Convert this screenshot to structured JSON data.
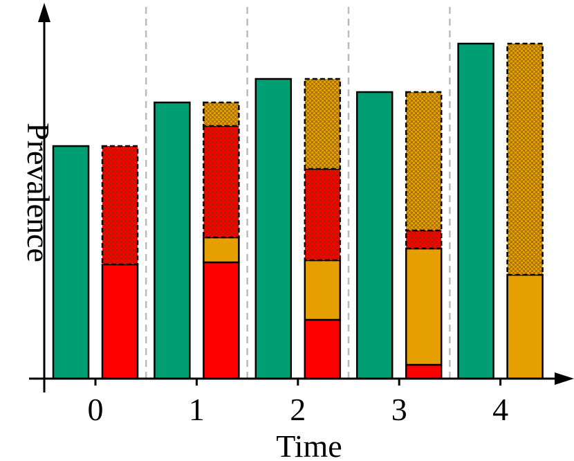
{
  "chart_data": {
    "type": "grouped-stacked-bar",
    "x_label": "Time",
    "y_label": "Prevalence",
    "categories": [
      "0",
      "1",
      "2",
      "3",
      "4"
    ],
    "ylim": [
      0,
      5.37
    ],
    "series": [
      {
        "group": 0,
        "color": "#009e73",
        "hatched": false,
        "values": [
          3.36,
          3.99,
          4.33,
          4.14,
          4.84
        ]
      },
      {
        "group": 1,
        "color": "#ff0000",
        "hatched": false,
        "values": [
          1.65,
          1.68,
          0.85,
          0.2,
          0
        ]
      },
      {
        "group": 1,
        "color": "#e69f00",
        "hatched": false,
        "values": [
          0,
          0.36,
          0.86,
          1.68,
          1.5
        ]
      },
      {
        "group": 1,
        "color": "#ff0000",
        "hatched": true,
        "values": [
          1.71,
          1.61,
          1.32,
          0.26,
          0
        ]
      },
      {
        "group": 1,
        "color": "#e69f00",
        "hatched": true,
        "values": [
          0,
          0.34,
          1.3,
          2.0,
          3.34
        ]
      }
    ]
  }
}
